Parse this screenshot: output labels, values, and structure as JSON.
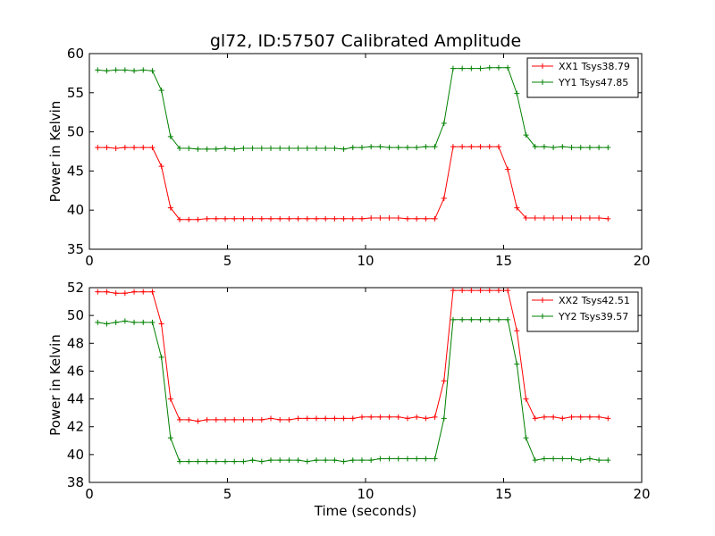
{
  "figure": {
    "title": "gl72, ID:57507 Calibrated Amplitude",
    "xlabel": "Time (seconds)"
  },
  "colors": {
    "red": "#ff0000",
    "green": "#008000"
  },
  "chart_data": [
    {
      "type": "line",
      "title": "gl72, ID:57507 Calibrated Amplitude",
      "xlabel": "",
      "ylabel": "Power in Kelvin",
      "xlim": [
        0,
        20
      ],
      "ylim": [
        35,
        60
      ],
      "xticks": [
        "0",
        "5",
        "10",
        "15",
        "20"
      ],
      "yticks": [
        "35",
        "40",
        "45",
        "50",
        "55",
        "60"
      ],
      "grid": false,
      "legend_position": "top-right",
      "series": [
        {
          "name": "XX1 Tsys38.79",
          "color": "#ff0000",
          "marker": "+",
          "x": [
            0.3,
            0.63,
            0.96,
            1.29,
            1.62,
            1.95,
            2.28,
            2.61,
            2.94,
            3.27,
            3.6,
            3.93,
            4.26,
            4.59,
            4.92,
            5.25,
            5.58,
            5.91,
            6.24,
            6.57,
            6.9,
            7.23,
            7.56,
            7.89,
            8.22,
            8.55,
            8.88,
            9.21,
            9.54,
            9.87,
            10.2,
            10.53,
            10.86,
            11.19,
            11.52,
            11.85,
            12.18,
            12.51,
            12.84,
            13.17,
            13.5,
            13.83,
            14.16,
            14.49,
            14.82,
            15.15,
            15.48,
            15.81,
            16.14,
            16.47,
            16.8,
            17.13,
            17.46,
            17.79,
            18.12,
            18.45,
            18.78
          ],
          "y": [
            48.0,
            48.0,
            47.9,
            48.0,
            48.0,
            48.0,
            48.0,
            45.6,
            40.3,
            38.8,
            38.8,
            38.8,
            38.9,
            38.9,
            38.9,
            38.9,
            38.9,
            38.9,
            38.9,
            38.9,
            38.9,
            38.9,
            38.9,
            38.9,
            38.9,
            38.9,
            38.9,
            38.9,
            38.9,
            38.9,
            39.0,
            39.0,
            39.0,
            39.0,
            38.9,
            38.9,
            38.9,
            38.9,
            41.5,
            48.1,
            48.1,
            48.1,
            48.1,
            48.1,
            48.1,
            45.2,
            40.3,
            39.0,
            39.0,
            39.0,
            39.0,
            39.0,
            39.0,
            39.0,
            39.0,
            39.0,
            38.9
          ]
        },
        {
          "name": "YY1 Tsys47.85",
          "color": "#008000",
          "marker": "+",
          "x": [
            0.3,
            0.63,
            0.96,
            1.29,
            1.62,
            1.95,
            2.28,
            2.61,
            2.94,
            3.27,
            3.6,
            3.93,
            4.26,
            4.59,
            4.92,
            5.25,
            5.58,
            5.91,
            6.24,
            6.57,
            6.9,
            7.23,
            7.56,
            7.89,
            8.22,
            8.55,
            8.88,
            9.21,
            9.54,
            9.87,
            10.2,
            10.53,
            10.86,
            11.19,
            11.52,
            11.85,
            12.18,
            12.51,
            12.84,
            13.17,
            13.5,
            13.83,
            14.16,
            14.49,
            14.82,
            15.15,
            15.48,
            15.81,
            16.14,
            16.47,
            16.8,
            17.13,
            17.46,
            17.79,
            18.12,
            18.45,
            18.78
          ],
          "y": [
            57.9,
            57.8,
            57.9,
            57.9,
            57.8,
            57.9,
            57.8,
            55.3,
            49.4,
            47.9,
            47.9,
            47.8,
            47.8,
            47.8,
            47.9,
            47.8,
            47.9,
            47.9,
            47.9,
            47.9,
            47.9,
            47.9,
            47.9,
            47.9,
            47.9,
            47.9,
            47.9,
            47.8,
            48.0,
            48.0,
            48.1,
            48.1,
            48.0,
            48.0,
            48.0,
            48.0,
            48.1,
            48.1,
            51.1,
            58.1,
            58.1,
            58.1,
            58.1,
            58.2,
            58.2,
            58.2,
            54.9,
            49.6,
            48.1,
            48.1,
            48.0,
            48.1,
            48.0,
            48.0,
            48.0,
            48.0,
            48.0
          ]
        }
      ]
    },
    {
      "type": "line",
      "title": "",
      "xlabel": "Time (seconds)",
      "ylabel": "Power in Kelvin",
      "xlim": [
        0,
        20
      ],
      "ylim": [
        38,
        52
      ],
      "xticks": [
        "0",
        "5",
        "10",
        "15",
        "20"
      ],
      "yticks": [
        "38",
        "40",
        "42",
        "44",
        "46",
        "48",
        "50",
        "52"
      ],
      "grid": false,
      "legend_position": "top-right",
      "series": [
        {
          "name": "XX2 Tsys42.51",
          "color": "#ff0000",
          "marker": "+",
          "x": [
            0.3,
            0.63,
            0.96,
            1.29,
            1.62,
            1.95,
            2.28,
            2.61,
            2.94,
            3.27,
            3.6,
            3.93,
            4.26,
            4.59,
            4.92,
            5.25,
            5.58,
            5.91,
            6.24,
            6.57,
            6.9,
            7.23,
            7.56,
            7.89,
            8.22,
            8.55,
            8.88,
            9.21,
            9.54,
            9.87,
            10.2,
            10.53,
            10.86,
            11.19,
            11.52,
            11.85,
            12.18,
            12.51,
            12.84,
            13.17,
            13.5,
            13.83,
            14.16,
            14.49,
            14.82,
            15.15,
            15.48,
            15.81,
            16.14,
            16.47,
            16.8,
            17.13,
            17.46,
            17.79,
            18.12,
            18.45,
            18.78
          ],
          "y": [
            51.7,
            51.7,
            51.6,
            51.6,
            51.7,
            51.7,
            51.7,
            49.4,
            44.0,
            42.5,
            42.5,
            42.4,
            42.5,
            42.5,
            42.5,
            42.5,
            42.5,
            42.5,
            42.5,
            42.6,
            42.5,
            42.5,
            42.6,
            42.6,
            42.6,
            42.6,
            42.6,
            42.6,
            42.6,
            42.7,
            42.7,
            42.7,
            42.7,
            42.7,
            42.6,
            42.7,
            42.6,
            42.7,
            45.3,
            51.8,
            51.8,
            51.8,
            51.8,
            51.8,
            51.8,
            51.8,
            48.9,
            44.0,
            42.6,
            42.7,
            42.7,
            42.6,
            42.7,
            42.7,
            42.7,
            42.7,
            42.6
          ]
        },
        {
          "name": "YY2 Tsys39.57",
          "color": "#008000",
          "marker": "+",
          "x": [
            0.3,
            0.63,
            0.96,
            1.29,
            1.62,
            1.95,
            2.28,
            2.61,
            2.94,
            3.27,
            3.6,
            3.93,
            4.26,
            4.59,
            4.92,
            5.25,
            5.58,
            5.91,
            6.24,
            6.57,
            6.9,
            7.23,
            7.56,
            7.89,
            8.22,
            8.55,
            8.88,
            9.21,
            9.54,
            9.87,
            10.2,
            10.53,
            10.86,
            11.19,
            11.52,
            11.85,
            12.18,
            12.51,
            12.84,
            13.17,
            13.5,
            13.83,
            14.16,
            14.49,
            14.82,
            15.15,
            15.48,
            15.81,
            16.14,
            16.47,
            16.8,
            17.13,
            17.46,
            17.79,
            18.12,
            18.45,
            18.78
          ],
          "y": [
            49.5,
            49.4,
            49.5,
            49.6,
            49.5,
            49.5,
            49.5,
            47.0,
            41.2,
            39.5,
            39.5,
            39.5,
            39.5,
            39.5,
            39.5,
            39.5,
            39.5,
            39.6,
            39.5,
            39.6,
            39.6,
            39.6,
            39.6,
            39.5,
            39.6,
            39.6,
            39.6,
            39.5,
            39.6,
            39.6,
            39.6,
            39.7,
            39.7,
            39.7,
            39.7,
            39.7,
            39.7,
            39.7,
            42.6,
            49.7,
            49.7,
            49.7,
            49.7,
            49.7,
            49.7,
            49.7,
            46.5,
            41.2,
            39.6,
            39.7,
            39.7,
            39.7,
            39.7,
            39.6,
            39.7,
            39.6,
            39.6
          ]
        }
      ]
    }
  ]
}
